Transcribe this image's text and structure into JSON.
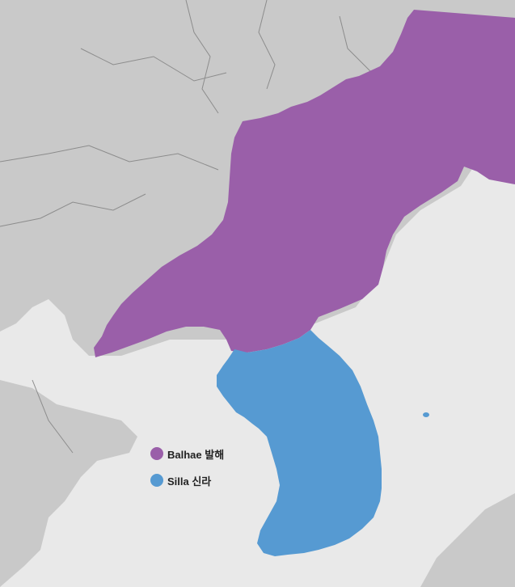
{
  "legend": [
    {
      "label": "Balhae 발해",
      "color": "#9a5fa9"
    },
    {
      "label": "Silla 신라",
      "color": "#569ad2"
    }
  ],
  "colors": {
    "land": "#c9c9c9",
    "sea": "#e9e9e9",
    "borders": "#8c8c8c"
  }
}
